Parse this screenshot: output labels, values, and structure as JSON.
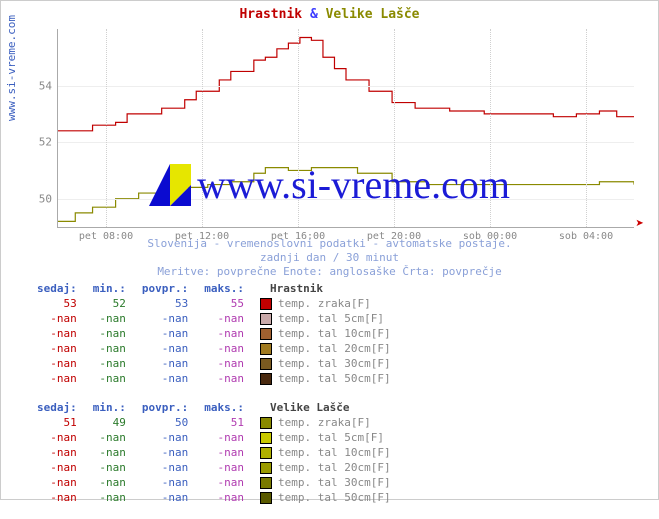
{
  "title": {
    "a": "Hrastnik",
    "amp": "&",
    "b": "Velike Lašče"
  },
  "ylabel": "www.si-vreme.com",
  "watermark": "www.si-vreme.com",
  "chart": {
    "type": "line",
    "background_color": "#ffffff",
    "grid_color": "#eeeeee",
    "ylim": [
      49,
      56
    ],
    "yticks": [
      50,
      52,
      54
    ],
    "xticks": [
      "pet 08:00",
      "pet 12:00",
      "pet 16:00",
      "pet 20:00",
      "sob 00:00",
      "sob 04:00"
    ],
    "series": [
      {
        "name": "Hrastnik",
        "color": "#c00000",
        "stroke_width": 1.2,
        "points": [
          [
            0,
            52.4
          ],
          [
            0.04,
            52.4
          ],
          [
            0.06,
            52.6
          ],
          [
            0.1,
            52.7
          ],
          [
            0.12,
            53.0
          ],
          [
            0.16,
            53.0
          ],
          [
            0.18,
            53.2
          ],
          [
            0.22,
            53.5
          ],
          [
            0.24,
            53.8
          ],
          [
            0.28,
            54.2
          ],
          [
            0.3,
            54.5
          ],
          [
            0.34,
            54.9
          ],
          [
            0.36,
            55.0
          ],
          [
            0.38,
            55.3
          ],
          [
            0.4,
            55.5
          ],
          [
            0.42,
            55.7
          ],
          [
            0.44,
            55.6
          ],
          [
            0.46,
            55.0
          ],
          [
            0.48,
            54.6
          ],
          [
            0.5,
            54.2
          ],
          [
            0.54,
            53.8
          ],
          [
            0.58,
            53.4
          ],
          [
            0.62,
            53.2
          ],
          [
            0.68,
            53.1
          ],
          [
            0.74,
            53.0
          ],
          [
            0.8,
            53.0
          ],
          [
            0.86,
            52.9
          ],
          [
            0.9,
            53.0
          ],
          [
            0.94,
            53.1
          ],
          [
            0.97,
            52.9
          ],
          [
            1.0,
            52.9
          ]
        ]
      },
      {
        "name": "Velike Lašče",
        "color": "#8a8a00",
        "stroke_width": 1.2,
        "points": [
          [
            0,
            49.2
          ],
          [
            0.03,
            49.5
          ],
          [
            0.06,
            49.7
          ],
          [
            0.1,
            50.0
          ],
          [
            0.14,
            50.2
          ],
          [
            0.18,
            50.4
          ],
          [
            0.22,
            50.4
          ],
          [
            0.26,
            50.5
          ],
          [
            0.3,
            50.6
          ],
          [
            0.34,
            50.9
          ],
          [
            0.36,
            51.1
          ],
          [
            0.4,
            51.0
          ],
          [
            0.44,
            51.1
          ],
          [
            0.48,
            51.1
          ],
          [
            0.52,
            50.9
          ],
          [
            0.58,
            50.6
          ],
          [
            0.64,
            50.5
          ],
          [
            0.72,
            50.5
          ],
          [
            0.8,
            50.5
          ],
          [
            0.88,
            50.5
          ],
          [
            0.94,
            50.6
          ],
          [
            1.0,
            50.5
          ]
        ]
      }
    ]
  },
  "notes": {
    "line1": "Slovenija - vremenoslovni podatki - avtomatske postaje.",
    "line2": "zadnji dan / 30 minut",
    "line3": "Meritve: povprečne  Enote: anglosaške  Črta: povprečje"
  },
  "columns": {
    "sedaj": "sedaj:",
    "min": "min.:",
    "povpr": "povpr.:",
    "maks": "maks.:"
  },
  "tables": [
    {
      "location": "Hrastnik",
      "swatches": [
        "#c00000",
        "#c9a9a9",
        "#a06030",
        "#a07a20",
        "#7a5a20",
        "#4a2a10"
      ],
      "rows": [
        {
          "sedaj": "53",
          "min": "52",
          "povpr": "53",
          "maks": "55",
          "label": "temp. zraka[F]"
        },
        {
          "sedaj": "-nan",
          "min": "-nan",
          "povpr": "-nan",
          "maks": "-nan",
          "label": "temp. tal  5cm[F]"
        },
        {
          "sedaj": "-nan",
          "min": "-nan",
          "povpr": "-nan",
          "maks": "-nan",
          "label": "temp. tal 10cm[F]"
        },
        {
          "sedaj": "-nan",
          "min": "-nan",
          "povpr": "-nan",
          "maks": "-nan",
          "label": "temp. tal 20cm[F]"
        },
        {
          "sedaj": "-nan",
          "min": "-nan",
          "povpr": "-nan",
          "maks": "-nan",
          "label": "temp. tal 30cm[F]"
        },
        {
          "sedaj": "-nan",
          "min": "-nan",
          "povpr": "-nan",
          "maks": "-nan",
          "label": "temp. tal 50cm[F]"
        }
      ]
    },
    {
      "location": "Velike Lašče",
      "swatches": [
        "#8a8a00",
        "#c9c900",
        "#b0b000",
        "#9a9a00",
        "#7a7a00",
        "#5a5a00"
      ],
      "rows": [
        {
          "sedaj": "51",
          "min": "49",
          "povpr": "50",
          "maks": "51",
          "label": "temp. zraka[F]"
        },
        {
          "sedaj": "-nan",
          "min": "-nan",
          "povpr": "-nan",
          "maks": "-nan",
          "label": "temp. tal  5cm[F]"
        },
        {
          "sedaj": "-nan",
          "min": "-nan",
          "povpr": "-nan",
          "maks": "-nan",
          "label": "temp. tal 10cm[F]"
        },
        {
          "sedaj": "-nan",
          "min": "-nan",
          "povpr": "-nan",
          "maks": "-nan",
          "label": "temp. tal 20cm[F]"
        },
        {
          "sedaj": "-nan",
          "min": "-nan",
          "povpr": "-nan",
          "maks": "-nan",
          "label": "temp. tal 30cm[F]"
        },
        {
          "sedaj": "-nan",
          "min": "-nan",
          "povpr": "-nan",
          "maks": "-nan",
          "label": "temp. tal 50cm[F]"
        }
      ]
    }
  ]
}
